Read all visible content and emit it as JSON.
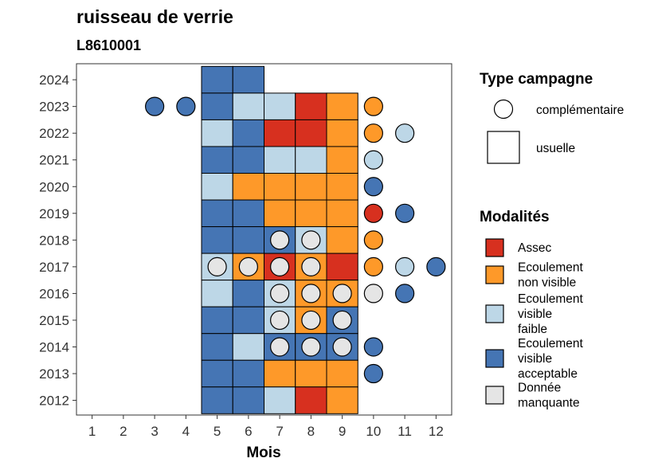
{
  "chart_data": {
    "type": "heatmap",
    "title": "ruisseau de verrie",
    "subtitle": "L8610001",
    "xlabel": "Mois",
    "ylabel": "",
    "x_ticks": [
      1,
      2,
      3,
      4,
      5,
      6,
      7,
      8,
      9,
      10,
      11,
      12
    ],
    "y_ticks": [
      2012,
      2013,
      2014,
      2015,
      2016,
      2017,
      2018,
      2019,
      2020,
      2021,
      2022,
      2023,
      2024
    ],
    "xlim": [
      0.5,
      12.5
    ],
    "ylim": [
      2011.45,
      2024.6
    ],
    "grid": false,
    "legend_position": "right",
    "legend_shape_title": "Type campagne",
    "legend_shape_entries": [
      {
        "key": "complementaire",
        "label": "complémentaire",
        "shape": "circle"
      },
      {
        "key": "usuelle",
        "label": "usuelle",
        "shape": "square"
      }
    ],
    "legend_color_title": "Modalités",
    "modalities": [
      {
        "key": "assec",
        "lines": [
          "Assec"
        ],
        "color": "#D7301F"
      },
      {
        "key": "nonvisible",
        "lines": [
          "Ecoulement",
          "non visible"
        ],
        "color": "#FE9929"
      },
      {
        "key": "faible",
        "lines": [
          "Ecoulement",
          "visible",
          "faible"
        ],
        "color": "#BDD7E7"
      },
      {
        "key": "acceptable",
        "lines": [
          "Ecoulement",
          "visible",
          "acceptable"
        ],
        "color": "#4575B4"
      },
      {
        "key": "manquante",
        "lines": [
          "Donnée",
          "manquante"
        ],
        "color": "#E5E5E5"
      }
    ],
    "usuelle": [
      {
        "year": 2024,
        "month": 5,
        "modality": "acceptable"
      },
      {
        "year": 2024,
        "month": 6,
        "modality": "acceptable"
      },
      {
        "year": 2023,
        "month": 5,
        "modality": "acceptable"
      },
      {
        "year": 2023,
        "month": 6,
        "modality": "faible"
      },
      {
        "year": 2023,
        "month": 7,
        "modality": "faible"
      },
      {
        "year": 2023,
        "month": 8,
        "modality": "assec"
      },
      {
        "year": 2023,
        "month": 9,
        "modality": "nonvisible"
      },
      {
        "year": 2022,
        "month": 5,
        "modality": "faible"
      },
      {
        "year": 2022,
        "month": 6,
        "modality": "acceptable"
      },
      {
        "year": 2022,
        "month": 7,
        "modality": "assec"
      },
      {
        "year": 2022,
        "month": 8,
        "modality": "assec"
      },
      {
        "year": 2022,
        "month": 9,
        "modality": "nonvisible"
      },
      {
        "year": 2021,
        "month": 5,
        "modality": "acceptable"
      },
      {
        "year": 2021,
        "month": 6,
        "modality": "acceptable"
      },
      {
        "year": 2021,
        "month": 7,
        "modality": "faible"
      },
      {
        "year": 2021,
        "month": 8,
        "modality": "faible"
      },
      {
        "year": 2021,
        "month": 9,
        "modality": "nonvisible"
      },
      {
        "year": 2020,
        "month": 5,
        "modality": "faible"
      },
      {
        "year": 2020,
        "month": 6,
        "modality": "nonvisible"
      },
      {
        "year": 2020,
        "month": 7,
        "modality": "nonvisible"
      },
      {
        "year": 2020,
        "month": 8,
        "modality": "nonvisible"
      },
      {
        "year": 2020,
        "month": 9,
        "modality": "nonvisible"
      },
      {
        "year": 2019,
        "month": 5,
        "modality": "acceptable"
      },
      {
        "year": 2019,
        "month": 6,
        "modality": "acceptable"
      },
      {
        "year": 2019,
        "month": 7,
        "modality": "nonvisible"
      },
      {
        "year": 2019,
        "month": 8,
        "modality": "nonvisible"
      },
      {
        "year": 2019,
        "month": 9,
        "modality": "nonvisible"
      },
      {
        "year": 2018,
        "month": 5,
        "modality": "acceptable"
      },
      {
        "year": 2018,
        "month": 6,
        "modality": "acceptable"
      },
      {
        "year": 2018,
        "month": 7,
        "modality": "acceptable"
      },
      {
        "year": 2018,
        "month": 8,
        "modality": "faible"
      },
      {
        "year": 2018,
        "month": 9,
        "modality": "nonvisible"
      },
      {
        "year": 2017,
        "month": 5,
        "modality": "faible"
      },
      {
        "year": 2017,
        "month": 6,
        "modality": "nonvisible"
      },
      {
        "year": 2017,
        "month": 7,
        "modality": "assec"
      },
      {
        "year": 2017,
        "month": 8,
        "modality": "nonvisible"
      },
      {
        "year": 2017,
        "month": 9,
        "modality": "assec"
      },
      {
        "year": 2016,
        "month": 5,
        "modality": "faible"
      },
      {
        "year": 2016,
        "month": 6,
        "modality": "acceptable"
      },
      {
        "year": 2016,
        "month": 7,
        "modality": "faible"
      },
      {
        "year": 2016,
        "month": 8,
        "modality": "nonvisible"
      },
      {
        "year": 2016,
        "month": 9,
        "modality": "nonvisible"
      },
      {
        "year": 2015,
        "month": 5,
        "modality": "acceptable"
      },
      {
        "year": 2015,
        "month": 6,
        "modality": "acceptable"
      },
      {
        "year": 2015,
        "month": 7,
        "modality": "faible"
      },
      {
        "year": 2015,
        "month": 8,
        "modality": "nonvisible"
      },
      {
        "year": 2015,
        "month": 9,
        "modality": "acceptable"
      },
      {
        "year": 2014,
        "month": 5,
        "modality": "acceptable"
      },
      {
        "year": 2014,
        "month": 6,
        "modality": "faible"
      },
      {
        "year": 2014,
        "month": 7,
        "modality": "acceptable"
      },
      {
        "year": 2014,
        "month": 8,
        "modality": "acceptable"
      },
      {
        "year": 2014,
        "month": 9,
        "modality": "acceptable"
      },
      {
        "year": 2013,
        "month": 5,
        "modality": "acceptable"
      },
      {
        "year": 2013,
        "month": 6,
        "modality": "acceptable"
      },
      {
        "year": 2013,
        "month": 7,
        "modality": "nonvisible"
      },
      {
        "year": 2013,
        "month": 8,
        "modality": "nonvisible"
      },
      {
        "year": 2013,
        "month": 9,
        "modality": "nonvisible"
      },
      {
        "year": 2012,
        "month": 5,
        "modality": "acceptable"
      },
      {
        "year": 2012,
        "month": 6,
        "modality": "acceptable"
      },
      {
        "year": 2012,
        "month": 7,
        "modality": "faible"
      },
      {
        "year": 2012,
        "month": 8,
        "modality": "assec"
      },
      {
        "year": 2012,
        "month": 9,
        "modality": "nonvisible"
      }
    ],
    "complementaire": [
      {
        "year": 2023,
        "month": 3,
        "modality": "acceptable"
      },
      {
        "year": 2023,
        "month": 4,
        "modality": "acceptable"
      },
      {
        "year": 2023,
        "month": 10,
        "modality": "nonvisible"
      },
      {
        "year": 2022,
        "month": 10,
        "modality": "nonvisible"
      },
      {
        "year": 2022,
        "month": 11,
        "modality": "faible"
      },
      {
        "year": 2021,
        "month": 10,
        "modality": "faible"
      },
      {
        "year": 2020,
        "month": 10,
        "modality": "acceptable"
      },
      {
        "year": 2019,
        "month": 10,
        "modality": "assec"
      },
      {
        "year": 2019,
        "month": 11,
        "modality": "acceptable"
      },
      {
        "year": 2018,
        "month": 7,
        "modality": "manquante"
      },
      {
        "year": 2018,
        "month": 8,
        "modality": "manquante"
      },
      {
        "year": 2018,
        "month": 10,
        "modality": "nonvisible"
      },
      {
        "year": 2017,
        "month": 5,
        "modality": "manquante"
      },
      {
        "year": 2017,
        "month": 6,
        "modality": "manquante"
      },
      {
        "year": 2017,
        "month": 7,
        "modality": "manquante"
      },
      {
        "year": 2017,
        "month": 8,
        "modality": "manquante"
      },
      {
        "year": 2017,
        "month": 10,
        "modality": "nonvisible"
      },
      {
        "year": 2017,
        "month": 11,
        "modality": "faible"
      },
      {
        "year": 2017,
        "month": 12,
        "modality": "acceptable"
      },
      {
        "year": 2016,
        "month": 7,
        "modality": "manquante"
      },
      {
        "year": 2016,
        "month": 8,
        "modality": "manquante"
      },
      {
        "year": 2016,
        "month": 9,
        "modality": "manquante"
      },
      {
        "year": 2016,
        "month": 10,
        "modality": "manquante"
      },
      {
        "year": 2016,
        "month": 11,
        "modality": "acceptable"
      },
      {
        "year": 2015,
        "month": 7,
        "modality": "manquante"
      },
      {
        "year": 2015,
        "month": 8,
        "modality": "manquante"
      },
      {
        "year": 2015,
        "month": 9,
        "modality": "manquante"
      },
      {
        "year": 2014,
        "month": 7,
        "modality": "manquante"
      },
      {
        "year": 2014,
        "month": 8,
        "modality": "manquante"
      },
      {
        "year": 2014,
        "month": 9,
        "modality": "manquante"
      },
      {
        "year": 2014,
        "month": 10,
        "modality": "acceptable"
      },
      {
        "year": 2013,
        "month": 10,
        "modality": "acceptable"
      }
    ]
  }
}
